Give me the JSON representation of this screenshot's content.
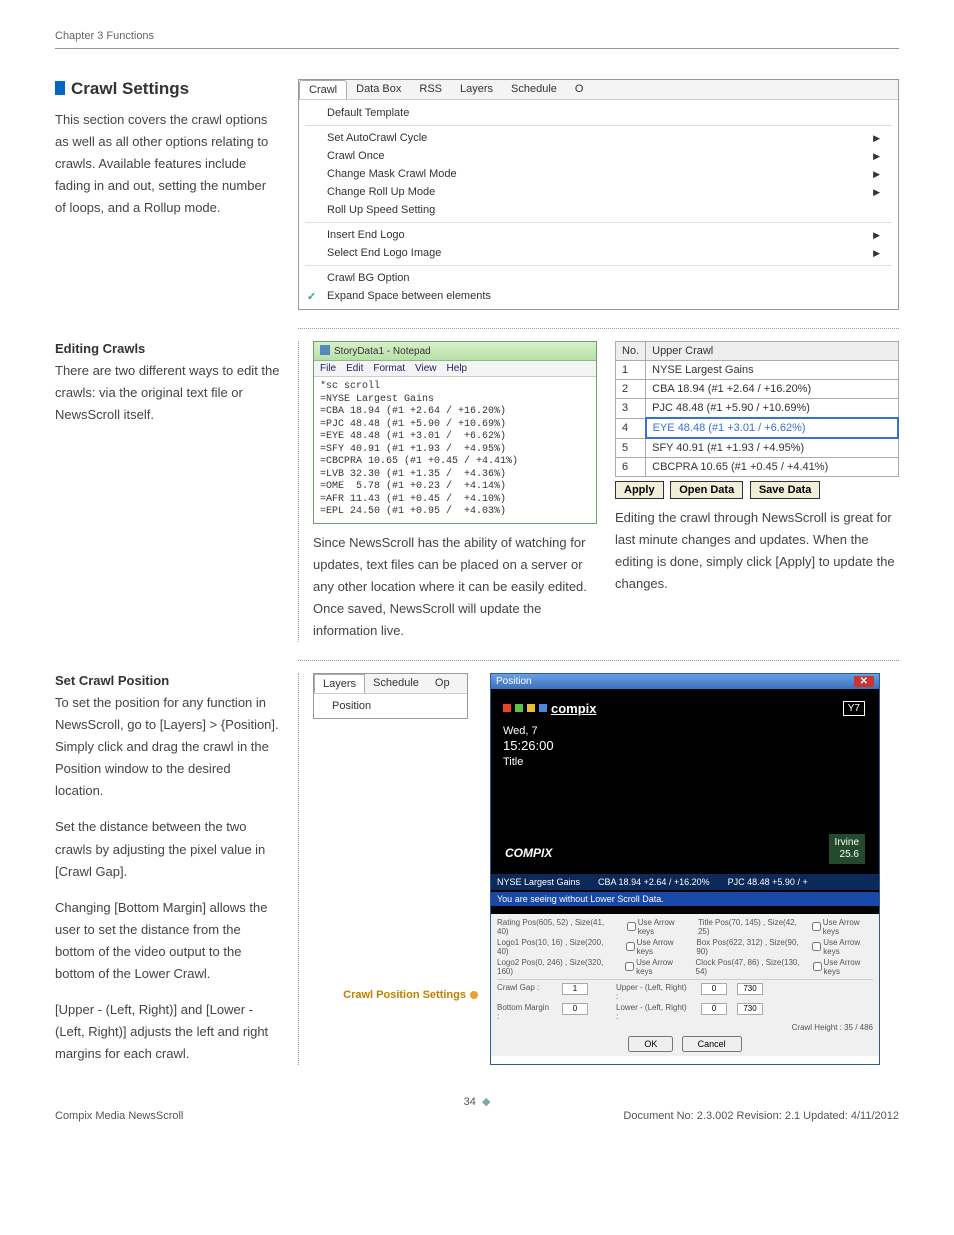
{
  "header": {
    "chapter": "Chapter 3 Functions"
  },
  "section1": {
    "title": "Crawl Settings",
    "body": "This section covers the crawl options as well as all other options relating to crawls. Available features include fading in and out, setting the number of loops, and a Rollup mode."
  },
  "menu": {
    "tabs": [
      "Crawl",
      "Data Box",
      "RSS",
      "Layers",
      "Schedule",
      "O"
    ],
    "active_tab": 0,
    "groups": [
      [
        {
          "label": "Default Template",
          "arrow": false
        }
      ],
      [
        {
          "label": "Set AutoCrawl Cycle",
          "arrow": true
        },
        {
          "label": "Crawl Once",
          "arrow": true
        },
        {
          "label": "Change Mask Crawl Mode",
          "arrow": true
        },
        {
          "label": "Change Roll Up Mode",
          "arrow": true
        },
        {
          "label": "Roll Up Speed Setting",
          "arrow": false
        }
      ],
      [
        {
          "label": "Insert End Logo",
          "arrow": true
        },
        {
          "label": "Select End Logo Image",
          "arrow": true
        }
      ],
      [
        {
          "label": "Crawl BG Option",
          "arrow": false
        },
        {
          "label": "Expand Space between elements",
          "arrow": false,
          "checked": true
        }
      ]
    ]
  },
  "editing": {
    "title": "Editing Crawls",
    "body": "There are two different ways to edit the crawls: via the original text file or NewsScroll itself."
  },
  "notepad": {
    "title": "StoryData1 - Notepad",
    "menu": [
      "File",
      "Edit",
      "Format",
      "View",
      "Help"
    ],
    "content": "*sc scroll\n=NYSE Largest Gains\n=CBA 18.94 (#1 +2.64 / +16.20%)\n=PJC 48.48 (#1 +5.90 / +10.69%)\n=EYE 48.48 (#1 +3.01 /  +6.62%)\n=SFY 40.91 (#1 +1.93 /  +4.95%)\n=CBCPRA 10.65 (#1 +0.45 / +4.41%)\n=LVB 32.30 (#1 +1.35 /  +4.36%)\n=OME  5.78 (#1 +0.23 /  +4.14%)\n=AFR 11.43 (#1 +0.45 /  +4.10%)\n=EPL 24.50 (#1 +0.95 /  +4.03%)"
  },
  "notepad_caption": "Since NewsScroll has the ability of watching for updates, text files can be placed on a server or any other location where it can be easily edited. Once saved, NewsScroll will update the information live.",
  "crawl_table": {
    "headers": [
      "No.",
      "Upper Crawl"
    ],
    "rows": [
      {
        "no": "1",
        "text": "NYSE Largest Gains"
      },
      {
        "no": "2",
        "text": "CBA 18.94 (#1 +2.64 / +16.20%)"
      },
      {
        "no": "3",
        "text": "PJC 48.48 (#1 +5.90 / +10.69%)"
      },
      {
        "no": "4",
        "text": "EYE 48.48 (#1 +3.01 / +6.62%)",
        "selected": true
      },
      {
        "no": "5",
        "text": "SFY 40.91 (#1 +1.93 / +4.95%)"
      },
      {
        "no": "6",
        "text": "CBCPRA 10.65 (#1 +0.45 / +4.41%)"
      }
    ],
    "buttons": {
      "apply": "Apply",
      "open": "Open Data",
      "save": "Save Data"
    }
  },
  "crawl_caption": "Editing the crawl through NewsScroll is great for last minute changes and updates. When the editing is done, simply click [Apply] to update the changes.",
  "setpos": {
    "title": "Set Crawl Position",
    "p1": "To set the position for any function in NewsScroll, go to [Layers] > {Position]. Simply click and drag the crawl in the Position window to the desired location.",
    "p2": "Set the distance between the two crawls by adjusting the pixel value in [Crawl Gap].",
    "p3": "Changing [Bottom Margin] allows the user to set the distance from the bottom of the video output to the bottom of the Lower Crawl.",
    "p4": "[Upper - (Left, Right)] and [Lower - (Left, Right)] adjusts the left and right margins for each crawl."
  },
  "layers_menu": {
    "tabs": [
      "Layers",
      "Schedule",
      "Op"
    ],
    "active_tab": 0,
    "item": "Position"
  },
  "pos_label": "Crawl Position Settings",
  "position_window": {
    "title": "Position",
    "logo": "compix",
    "y7": "Y7",
    "date": "Wed, 7",
    "time": "15:26:00",
    "title2": "Title",
    "compix2": "COMPIX",
    "irvine": {
      "city": "Irvine",
      "temp": "25.6"
    },
    "ticker": [
      "NYSE Largest Gains",
      "CBA 18.94 +2.64 / +16.20%",
      "PJC 48.48 +5.90 / +"
    ],
    "warn": "You are seeing without Lower Scroll Data.",
    "controls": {
      "rating": "Rating Pos(605, 52) , Size(41, 40)",
      "logo1": "Logo1 Pos(10, 16) , Size(200, 40)",
      "logo2": "Logo2 Pos(0, 246) , Size(320, 160)",
      "title_pos": "Title Pos(70, 145) , Size(42, 25)",
      "box_pos": "Box Pos(622, 312) , Size(90, 90)",
      "clock_pos": "Clock Pos(47, 86) , Size(130, 54)",
      "use_arrow": "Use Arrow keys",
      "crawl_gap_label": "Crawl Gap :",
      "crawl_gap": "1",
      "bottom_margin_label": "Bottom Margin :",
      "bottom_margin": "0",
      "upper_label": "Upper - (Left, Right) :",
      "upper_l": "0",
      "upper_r": "730",
      "lower_label": "Lower - (Left, Right) :",
      "lower_l": "0",
      "lower_r": "730",
      "crawl_height": "Crawl Height : 35 / 486",
      "ok": "OK",
      "cancel": "Cancel"
    }
  },
  "footer": {
    "page": "34",
    "product": "Compix Media NewsScroll",
    "docinfo": "Document No: 2.3.002 Revision: 2.1 Updated: 4/11/2012"
  }
}
